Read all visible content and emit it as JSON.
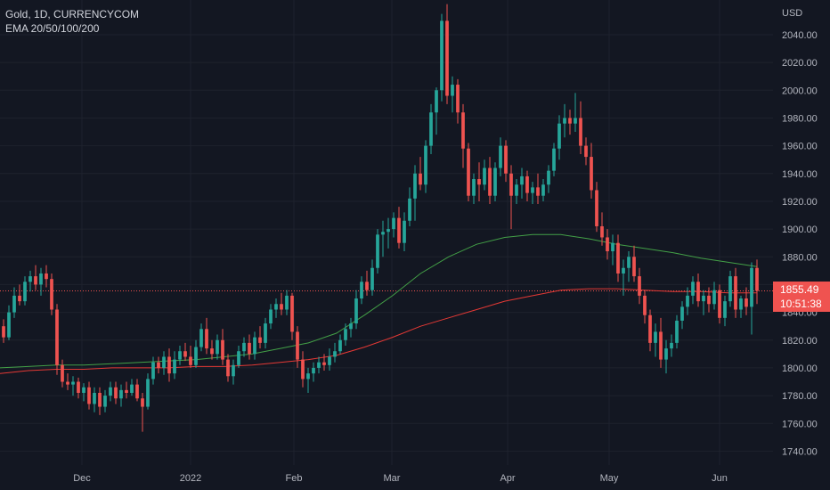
{
  "legend": {
    "title": "Gold, 1D, CURRENCYCOM",
    "indicator": "EMA 20/50/100/200"
  },
  "price_tag": {
    "price": "1855.49",
    "countdown": "10:51:38"
  },
  "colors": {
    "background": "#131722",
    "up": "#26a69a",
    "down": "#ef5350",
    "ema_green": "#43a047",
    "ema_red": "#e53935",
    "grid": "#1e222d",
    "text": "#b2b5be"
  },
  "chart_data": {
    "type": "candlestick",
    "title": "Gold, 1D, CURRENCYCOM",
    "ylabel": "USD",
    "ylim": [
      1730,
      2065
    ],
    "y_ticks": [
      1740,
      1760,
      1780,
      1800,
      1820,
      1840,
      1860,
      1880,
      1900,
      1920,
      1940,
      1960,
      1980,
      2000,
      2020,
      2040
    ],
    "x_ticks": [
      "Dec",
      "2022",
      "Feb",
      "Mar",
      "Apr",
      "May",
      "Jun"
    ],
    "last_price": 1855.49,
    "grid": true,
    "candles_ohlc": [
      [
        1830,
        1835,
        1818,
        1822
      ],
      [
        1822,
        1845,
        1820,
        1840
      ],
      [
        1840,
        1858,
        1836,
        1852
      ],
      [
        1852,
        1860,
        1845,
        1848
      ],
      [
        1848,
        1866,
        1845,
        1862
      ],
      [
        1862,
        1870,
        1855,
        1866
      ],
      [
        1866,
        1874,
        1856,
        1860
      ],
      [
        1860,
        1872,
        1852,
        1868
      ],
      [
        1868,
        1874,
        1858,
        1864
      ],
      [
        1864,
        1868,
        1838,
        1842
      ],
      [
        1842,
        1846,
        1795,
        1802
      ],
      [
        1802,
        1806,
        1786,
        1790
      ],
      [
        1790,
        1796,
        1784,
        1788
      ],
      [
        1788,
        1794,
        1780,
        1790
      ],
      [
        1790,
        1793,
        1778,
        1782
      ],
      [
        1782,
        1789,
        1776,
        1786
      ],
      [
        1786,
        1790,
        1770,
        1774
      ],
      [
        1774,
        1786,
        1768,
        1782
      ],
      [
        1782,
        1786,
        1766,
        1772
      ],
      [
        1772,
        1784,
        1768,
        1780
      ],
      [
        1780,
        1790,
        1776,
        1786
      ],
      [
        1786,
        1790,
        1774,
        1778
      ],
      [
        1778,
        1788,
        1772,
        1784
      ],
      [
        1784,
        1790,
        1778,
        1782
      ],
      [
        1782,
        1792,
        1780,
        1788
      ],
      [
        1788,
        1792,
        1776,
        1778
      ],
      [
        1778,
        1782,
        1754,
        1772
      ],
      [
        1772,
        1796,
        1770,
        1792
      ],
      [
        1792,
        1808,
        1788,
        1804
      ],
      [
        1804,
        1808,
        1796,
        1800
      ],
      [
        1800,
        1812,
        1795,
        1808
      ],
      [
        1808,
        1814,
        1790,
        1796
      ],
      [
        1796,
        1812,
        1792,
        1806
      ],
      [
        1806,
        1816,
        1802,
        1812
      ],
      [
        1812,
        1818,
        1805,
        1808
      ],
      [
        1808,
        1816,
        1800,
        1802
      ],
      [
        1802,
        1820,
        1800,
        1815
      ],
      [
        1815,
        1832,
        1812,
        1828
      ],
      [
        1828,
        1836,
        1810,
        1814
      ],
      [
        1814,
        1820,
        1806,
        1810
      ],
      [
        1810,
        1824,
        1806,
        1820
      ],
      [
        1820,
        1828,
        1802,
        1806
      ],
      [
        1806,
        1810,
        1790,
        1794
      ],
      [
        1794,
        1806,
        1788,
        1802
      ],
      [
        1802,
        1816,
        1800,
        1812
      ],
      [
        1812,
        1822,
        1808,
        1818
      ],
      [
        1818,
        1824,
        1806,
        1810
      ],
      [
        1810,
        1826,
        1806,
        1822
      ],
      [
        1822,
        1830,
        1814,
        1818
      ],
      [
        1818,
        1836,
        1814,
        1832
      ],
      [
        1832,
        1846,
        1828,
        1842
      ],
      [
        1842,
        1850,
        1836,
        1846
      ],
      [
        1846,
        1854,
        1838,
        1842
      ],
      [
        1842,
        1856,
        1838,
        1852
      ],
      [
        1852,
        1854,
        1820,
        1826
      ],
      [
        1826,
        1830,
        1800,
        1806
      ],
      [
        1806,
        1812,
        1786,
        1792
      ],
      [
        1792,
        1800,
        1782,
        1796
      ],
      [
        1796,
        1804,
        1790,
        1800
      ],
      [
        1800,
        1808,
        1796,
        1804
      ],
      [
        1804,
        1810,
        1798,
        1802
      ],
      [
        1802,
        1814,
        1798,
        1808
      ],
      [
        1808,
        1818,
        1804,
        1812
      ],
      [
        1812,
        1824,
        1810,
        1820
      ],
      [
        1820,
        1832,
        1816,
        1828
      ],
      [
        1828,
        1836,
        1822,
        1832
      ],
      [
        1832,
        1856,
        1828,
        1850
      ],
      [
        1850,
        1866,
        1846,
        1862
      ],
      [
        1862,
        1870,
        1852,
        1856
      ],
      [
        1856,
        1878,
        1852,
        1872
      ],
      [
        1872,
        1900,
        1868,
        1896
      ],
      [
        1896,
        1906,
        1880,
        1898
      ],
      [
        1898,
        1908,
        1886,
        1900
      ],
      [
        1900,
        1912,
        1894,
        1908
      ],
      [
        1908,
        1916,
        1886,
        1890
      ],
      [
        1890,
        1912,
        1884,
        1906
      ],
      [
        1906,
        1930,
        1902,
        1922
      ],
      [
        1922,
        1946,
        1906,
        1940
      ],
      [
        1940,
        1952,
        1928,
        1932
      ],
      [
        1932,
        1964,
        1926,
        1960
      ],
      [
        1960,
        1990,
        1954,
        1984
      ],
      [
        1984,
        2002,
        1968,
        2000
      ],
      [
        2000,
        2055,
        1992,
        2050
      ],
      [
        2050,
        2062,
        1990,
        1996
      ],
      [
        1996,
        2010,
        1984,
        2004
      ],
      [
        2004,
        2008,
        1976,
        1984
      ],
      [
        1984,
        1990,
        1944,
        1958
      ],
      [
        1958,
        1962,
        1920,
        1924
      ],
      [
        1924,
        1940,
        1918,
        1936
      ],
      [
        1936,
        1948,
        1920,
        1932
      ],
      [
        1932,
        1950,
        1928,
        1944
      ],
      [
        1944,
        1952,
        1918,
        1924
      ],
      [
        1924,
        1948,
        1920,
        1944
      ],
      [
        1944,
        1966,
        1938,
        1960
      ],
      [
        1960,
        1964,
        1934,
        1940
      ],
      [
        1940,
        1946,
        1900,
        1924
      ],
      [
        1924,
        1936,
        1918,
        1932
      ],
      [
        1932,
        1944,
        1922,
        1938
      ],
      [
        1938,
        1942,
        1920,
        1926
      ],
      [
        1926,
        1934,
        1918,
        1930
      ],
      [
        1930,
        1940,
        1918,
        1924
      ],
      [
        1924,
        1936,
        1920,
        1932
      ],
      [
        1932,
        1946,
        1926,
        1942
      ],
      [
        1942,
        1962,
        1938,
        1958
      ],
      [
        1958,
        1982,
        1950,
        1976
      ],
      [
        1976,
        1990,
        1966,
        1980
      ],
      [
        1980,
        1986,
        1968,
        1976
      ],
      [
        1976,
        1998,
        1970,
        1980
      ],
      [
        1980,
        1992,
        1954,
        1960
      ],
      [
        1960,
        1966,
        1946,
        1952
      ],
      [
        1952,
        1962,
        1922,
        1928
      ],
      [
        1928,
        1934,
        1898,
        1902
      ],
      [
        1902,
        1912,
        1888,
        1894
      ],
      [
        1894,
        1900,
        1878,
        1884
      ],
      [
        1884,
        1896,
        1874,
        1890
      ],
      [
        1890,
        1896,
        1862,
        1868
      ],
      [
        1868,
        1878,
        1852,
        1872
      ],
      [
        1872,
        1884,
        1862,
        1880
      ],
      [
        1880,
        1888,
        1862,
        1866
      ],
      [
        1866,
        1872,
        1846,
        1852
      ],
      [
        1852,
        1856,
        1832,
        1838
      ],
      [
        1838,
        1842,
        1812,
        1818
      ],
      [
        1818,
        1832,
        1808,
        1826
      ],
      [
        1826,
        1836,
        1800,
        1806
      ],
      [
        1806,
        1820,
        1796,
        1814
      ],
      [
        1814,
        1824,
        1808,
        1818
      ],
      [
        1818,
        1838,
        1814,
        1834
      ],
      [
        1834,
        1848,
        1828,
        1844
      ],
      [
        1844,
        1858,
        1838,
        1852
      ],
      [
        1852,
        1866,
        1846,
        1862
      ],
      [
        1862,
        1868,
        1844,
        1848
      ],
      [
        1848,
        1856,
        1838,
        1852
      ],
      [
        1852,
        1858,
        1840,
        1846
      ],
      [
        1846,
        1862,
        1842,
        1856
      ],
      [
        1856,
        1860,
        1832,
        1836
      ],
      [
        1836,
        1852,
        1830,
        1848
      ],
      [
        1848,
        1870,
        1844,
        1866
      ],
      [
        1866,
        1872,
        1836,
        1842
      ],
      [
        1842,
        1852,
        1836,
        1850
      ],
      [
        1850,
        1858,
        1838,
        1844
      ],
      [
        1844,
        1876,
        1824,
        1872
      ],
      [
        1872,
        1878,
        1846,
        1855.49
      ]
    ],
    "ema_series": [
      {
        "color": "green",
        "values": [
          1800,
          1801,
          1802,
          1802,
          1803,
          1804,
          1805,
          1806,
          1808,
          1810,
          1814,
          1818,
          1825,
          1838,
          1852,
          1868,
          1880,
          1889,
          1894,
          1896,
          1896,
          1893,
          1889,
          1886,
          1883,
          1879,
          1876,
          1873
        ]
      },
      {
        "color": "red",
        "values": [
          1796,
          1798,
          1799,
          1799,
          1800,
          1800,
          1800,
          1801,
          1801,
          1802,
          1804,
          1806,
          1809,
          1815,
          1822,
          1830,
          1836,
          1842,
          1848,
          1852,
          1856,
          1857,
          1857,
          1856,
          1855,
          1855,
          1854,
          1854
        ]
      }
    ]
  }
}
